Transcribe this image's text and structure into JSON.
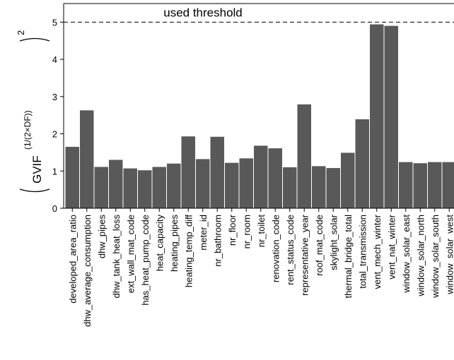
{
  "chart_data": {
    "type": "bar",
    "y_label": {
      "base": "GVIF",
      "exponent": "(1/(2×DF))",
      "power": "2"
    },
    "categories": [
      "developed_area_ratio",
      "dhw_average_consumption",
      "dhw_pipes",
      "dhw_tank_heat_loss",
      "ext_wall_mat_code",
      "has_heat_pump_code",
      "heat_capacity",
      "heating_pipes",
      "heating_temp_diff",
      "meter_id",
      "nr_bathroom",
      "nr_floor",
      "nr_room",
      "nr_toilet",
      "renovation_code",
      "rent_status_code",
      "representative_year",
      "roof_mat_code",
      "skylight_solar",
      "thermal_bridge_total",
      "total_transmission",
      "vent_mech_winter",
      "vent_nat_winter",
      "window_solar_east",
      "window_solar_north",
      "window_solar_south",
      "window_solar_west"
    ],
    "values": [
      1.65,
      2.63,
      1.11,
      1.3,
      1.07,
      1.02,
      1.11,
      1.2,
      1.93,
      1.32,
      1.92,
      1.22,
      1.34,
      1.68,
      1.61,
      1.1,
      2.79,
      1.13,
      1.08,
      1.49,
      2.39,
      4.94,
      4.9,
      1.24,
      1.21,
      1.24,
      1.24
    ],
    "color": "#595959",
    "threshold": {
      "value": 5,
      "label": "used threshold"
    },
    "ylim": [
      0,
      5.5
    ],
    "yticks": [
      0,
      1,
      2,
      3,
      4,
      5
    ]
  }
}
